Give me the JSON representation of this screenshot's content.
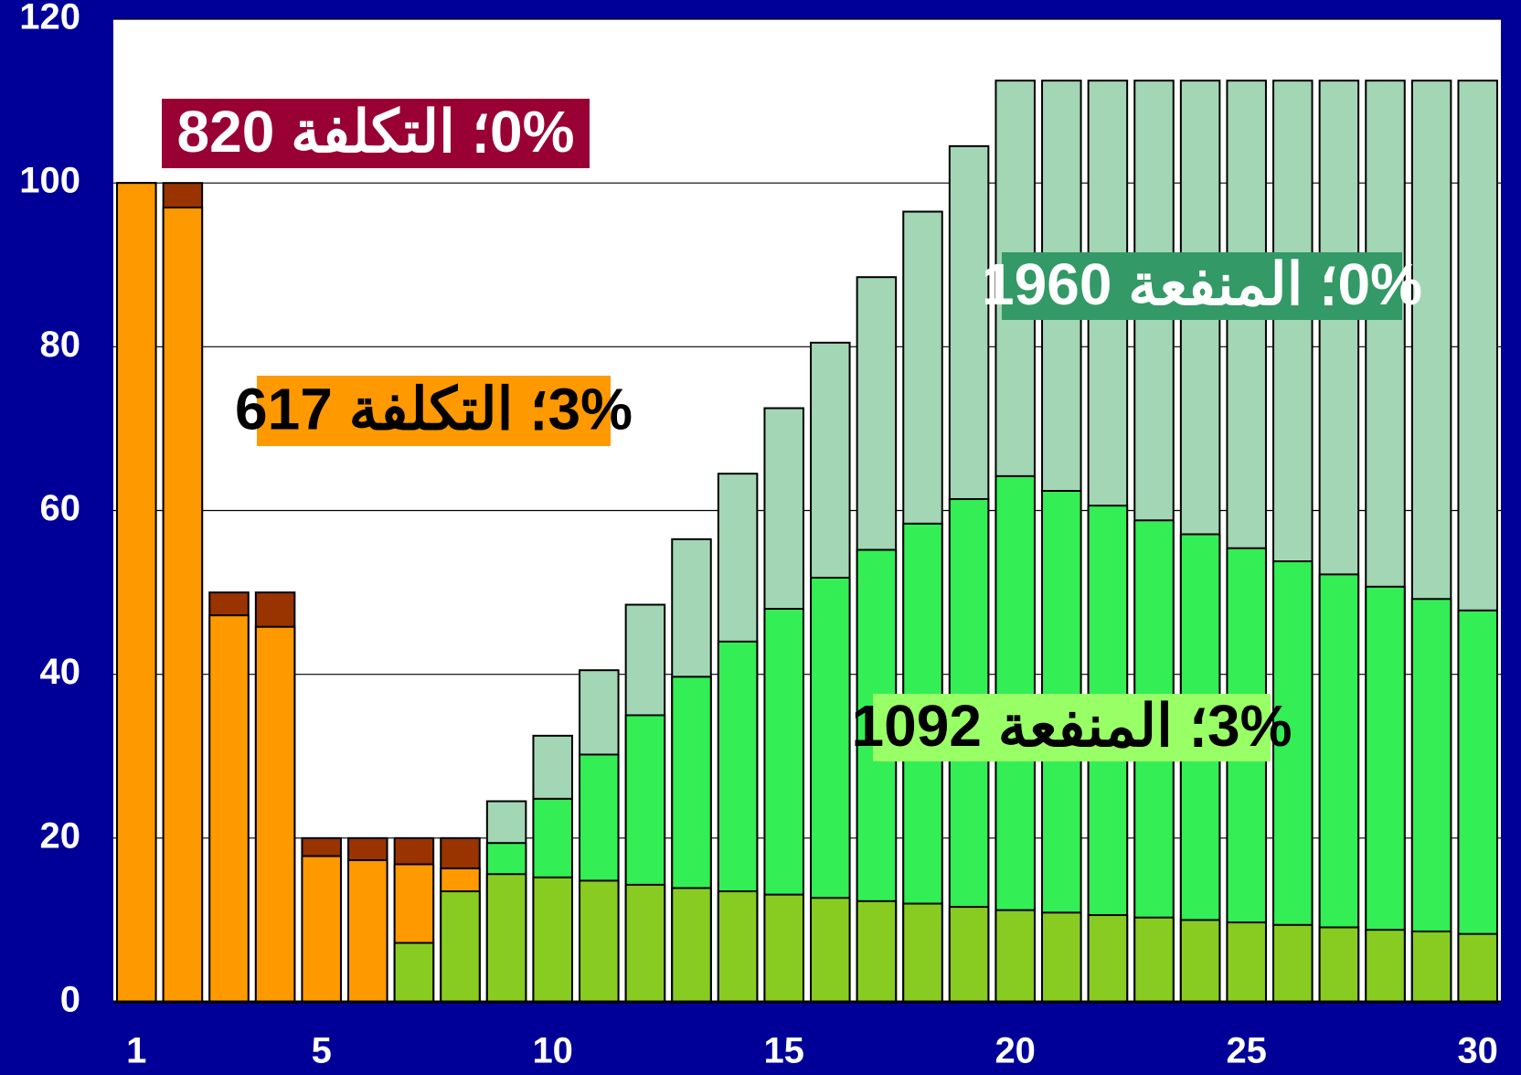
{
  "chart_data": {
    "type": "bar",
    "categories": [
      "1",
      null,
      null,
      null,
      "5",
      null,
      null,
      null,
      null,
      "10",
      null,
      null,
      null,
      null,
      "15",
      null,
      null,
      null,
      null,
      "20",
      null,
      null,
      null,
      null,
      "25",
      null,
      null,
      null,
      null,
      "30"
    ],
    "ylim": [
      0,
      120
    ],
    "yticks": [
      0,
      20,
      40,
      60,
      80,
      100,
      120
    ],
    "grid": true,
    "series": [
      {
        "name": "0%؛ المنفعة 1960",
        "color": "#a3d6b4",
        "label_color": "#339966",
        "label_text_color": "#ffffff",
        "values": [
          null,
          null,
          null,
          null,
          null,
          null,
          null,
          null,
          24.5,
          32.5,
          40.5,
          48.5,
          56.5,
          64.5,
          72.5,
          80.5,
          88.5,
          96.5,
          104.5,
          112.5,
          112.5,
          112.5,
          112.5,
          112.5,
          112.5,
          112.5,
          112.5,
          112.5,
          112.5,
          112.5
        ]
      },
      {
        "name": "0%؛ التكلفة 820",
        "color": "#993300",
        "label_color": "#990033",
        "label_text_color": "#ffffff",
        "values": [
          100,
          100,
          50,
          50,
          20,
          20,
          20,
          20,
          null,
          null,
          null,
          null,
          null,
          null,
          null,
          null,
          null,
          null,
          null,
          null,
          null,
          null,
          null,
          null,
          null,
          null,
          null,
          null,
          null,
          null
        ]
      },
      {
        "name": "3%؛ التكلفة 617",
        "color": "#ff9900",
        "label_color": "#ff9900",
        "label_text_color": "#000000",
        "values": [
          100,
          97,
          47.2,
          45.8,
          17.8,
          17.3,
          16.8,
          16.3,
          null,
          null,
          null,
          null,
          null,
          null,
          null,
          null,
          null,
          null,
          null,
          null,
          null,
          null,
          null,
          null,
          null,
          null,
          null,
          null,
          null,
          null
        ]
      },
      {
        "name": "3%؛ المنفعة 1092",
        "color": "#33ee55",
        "label_color": "#99ff66",
        "label_text_color": "#000000",
        "values": [
          null,
          null,
          null,
          null,
          null,
          null,
          null,
          null,
          19.4,
          24.8,
          30.2,
          35,
          39.7,
          44,
          48,
          51.8,
          55.2,
          58.4,
          61.4,
          64.2,
          62.4,
          60.6,
          58.8,
          57.1,
          55.4,
          53.8,
          52.2,
          50.7,
          49.2,
          47.8
        ]
      },
      {
        "color": "#88cc22",
        "values": [
          null,
          null,
          null,
          null,
          null,
          null,
          7.2,
          13.5,
          15.6,
          15.2,
          14.8,
          14.3,
          13.9,
          13.5,
          13.1,
          12.7,
          12.3,
          12,
          11.6,
          11.2,
          10.9,
          10.6,
          10.3,
          10,
          9.7,
          9.4,
          9.1,
          8.8,
          8.6,
          8.3
        ]
      }
    ]
  }
}
